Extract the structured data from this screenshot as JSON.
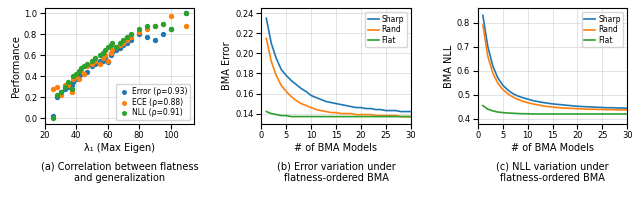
{
  "chart_data": [
    {
      "type": "scatter",
      "title": "(a) Correlation between flatness\nand generalization",
      "x_label": "λ₁ (Max Eigen)",
      "y_label": "Performance",
      "x": [
        25,
        28,
        30,
        33,
        35,
        37,
        38,
        40,
        42,
        43,
        45,
        47,
        50,
        52,
        55,
        57,
        58,
        60,
        62,
        63,
        65,
        68,
        70,
        72,
        75,
        80,
        85,
        90,
        95,
        100,
        110
      ],
      "series": [
        {
          "name": "Error (ρ=0.93)",
          "values": [
            0.02,
            0.2,
            0.25,
            0.28,
            0.3,
            0.32,
            0.35,
            0.38,
            0.4,
            0.42,
            0.42,
            0.44,
            0.5,
            0.52,
            0.55,
            0.55,
            0.58,
            0.54,
            0.6,
            0.63,
            0.65,
            0.67,
            0.7,
            0.72,
            0.75,
            0.8,
            0.78,
            0.75,
            0.8,
            0.85,
            1.0
          ]
        },
        {
          "name": "ECE (ρ=0.88)",
          "values": [
            0.28,
            0.3,
            0.22,
            0.32,
            0.32,
            0.25,
            0.38,
            0.4,
            0.38,
            0.45,
            0.42,
            0.5,
            0.52,
            0.55,
            0.52,
            0.58,
            0.6,
            0.55,
            0.62,
            0.65,
            0.68,
            0.7,
            0.72,
            0.75,
            0.78,
            0.82,
            0.85,
            0.88,
            0.9,
            0.98,
            0.88
          ]
        },
        {
          "name": "NLL (ρ=0.91)",
          "values": [
            0.0,
            0.22,
            0.25,
            0.3,
            0.35,
            0.28,
            0.4,
            0.42,
            0.45,
            0.48,
            0.5,
            0.52,
            0.55,
            0.58,
            0.6,
            0.62,
            0.65,
            0.68,
            0.7,
            0.72,
            0.68,
            0.72,
            0.75,
            0.78,
            0.8,
            0.85,
            0.88,
            0.88,
            0.9,
            0.85,
            1.0
          ]
        }
      ],
      "xlim": [
        20,
        115
      ],
      "ylim": [
        -0.05,
        1.05
      ],
      "xticks": [
        20,
        40,
        60,
        80,
        100
      ],
      "yticks": [
        {
          "value": 0,
          "label": "0.0"
        },
        0.2,
        0.4,
        0.6,
        0.8,
        {
          "value": 1,
          "label": "1.0"
        }
      ],
      "grid": true,
      "legend": "lower right"
    },
    {
      "type": "line",
      "title": "(b) Error variation under\nflatness-ordered BMA",
      "x_label": "# of BMA Models",
      "y_label": "BMA Error",
      "x": [
        1,
        2,
        3,
        4,
        5,
        6,
        7,
        8,
        9,
        10,
        11,
        12,
        13,
        14,
        15,
        16,
        17,
        18,
        19,
        20,
        21,
        22,
        23,
        24,
        25,
        26,
        27,
        28,
        29,
        30
      ],
      "series": [
        {
          "name": "Sharp",
          "values": [
            0.235,
            0.21,
            0.195,
            0.184,
            0.178,
            0.173,
            0.169,
            0.165,
            0.162,
            0.158,
            0.156,
            0.154,
            0.152,
            0.151,
            0.15,
            0.149,
            0.148,
            0.147,
            0.146,
            0.146,
            0.145,
            0.145,
            0.144,
            0.144,
            0.143,
            0.143,
            0.143,
            0.142,
            0.142,
            0.142
          ]
        },
        {
          "name": "Rand",
          "values": [
            0.215,
            0.192,
            0.178,
            0.168,
            0.162,
            0.157,
            0.153,
            0.15,
            0.148,
            0.146,
            0.144,
            0.143,
            0.142,
            0.141,
            0.141,
            0.14,
            0.14,
            0.14,
            0.139,
            0.139,
            0.139,
            0.139,
            0.138,
            0.138,
            0.138,
            0.138,
            0.138,
            0.137,
            0.137,
            0.137
          ]
        },
        {
          "name": "Flat",
          "values": [
            0.142,
            0.14,
            0.139,
            0.138,
            0.138,
            0.137,
            0.137,
            0.137,
            0.137,
            0.137,
            0.137,
            0.137,
            0.137,
            0.137,
            0.137,
            0.137,
            0.137,
            0.137,
            0.137,
            0.137,
            0.137,
            0.137,
            0.137,
            0.137,
            0.137,
            0.137,
            0.137,
            0.137,
            0.137,
            0.137
          ]
        }
      ],
      "xlim": [
        0,
        30
      ],
      "ylim": [
        0.13,
        0.245
      ],
      "xticks": [
        0,
        5,
        10,
        15,
        20,
        25,
        30
      ],
      "yticks": [
        0.14,
        0.16,
        0.18,
        {
          "value": 0.2,
          "label": "0.20"
        },
        0.22,
        0.24
      ],
      "grid": true,
      "legend": "upper right"
    },
    {
      "type": "line",
      "title": "(c) NLL variation under\nflatness-ordered BMA",
      "x_label": "# of BMA Models",
      "y_label": "BMA NLL",
      "x": [
        1,
        2,
        3,
        4,
        5,
        6,
        7,
        8,
        9,
        10,
        11,
        12,
        13,
        14,
        15,
        16,
        17,
        18,
        19,
        20,
        21,
        22,
        23,
        24,
        25,
        26,
        27,
        28,
        29,
        30
      ],
      "series": [
        {
          "name": "Sharp",
          "values": [
            0.83,
            0.7,
            0.62,
            0.57,
            0.54,
            0.52,
            0.505,
            0.495,
            0.488,
            0.482,
            0.476,
            0.472,
            0.468,
            0.465,
            0.462,
            0.46,
            0.458,
            0.456,
            0.454,
            0.452,
            0.451,
            0.45,
            0.449,
            0.448,
            0.447,
            0.446,
            0.446,
            0.445,
            0.445,
            0.444
          ]
        },
        {
          "name": "Rand",
          "values": [
            0.79,
            0.66,
            0.59,
            0.548,
            0.522,
            0.504,
            0.491,
            0.481,
            0.473,
            0.467,
            0.462,
            0.458,
            0.454,
            0.451,
            0.449,
            0.447,
            0.445,
            0.444,
            0.443,
            0.442,
            0.441,
            0.44,
            0.44,
            0.439,
            0.439,
            0.438,
            0.438,
            0.437,
            0.437,
            0.437
          ]
        },
        {
          "name": "Flat",
          "values": [
            0.455,
            0.44,
            0.433,
            0.428,
            0.426,
            0.424,
            0.423,
            0.422,
            0.421,
            0.421,
            0.42,
            0.42,
            0.42,
            0.42,
            0.42,
            0.42,
            0.42,
            0.42,
            0.42,
            0.42,
            0.42,
            0.42,
            0.42,
            0.42,
            0.42,
            0.42,
            0.42,
            0.42,
            0.42,
            0.42
          ]
        }
      ],
      "xlim": [
        0,
        30
      ],
      "ylim": [
        0.38,
        0.86
      ],
      "xticks": [
        0,
        5,
        10,
        15,
        20,
        25,
        30
      ],
      "yticks": [
        0.4,
        0.5,
        0.6,
        0.7,
        0.8
      ],
      "grid": true,
      "legend": "upper right"
    }
  ]
}
